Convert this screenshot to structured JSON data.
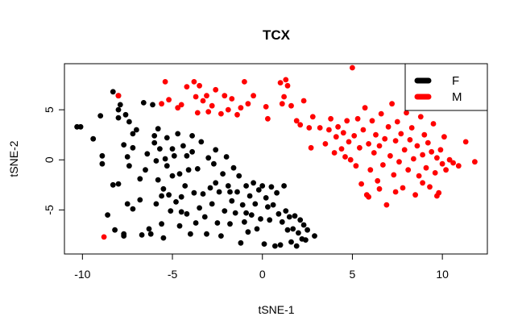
{
  "chart_data": {
    "type": "scatter",
    "title": "TCX",
    "xlabel": "tSNE-1",
    "ylabel": "tSNE-2",
    "xlim": [
      -11,
      12.5
    ],
    "ylim": [
      -9.4,
      9.6
    ],
    "x_ticks": [
      -10,
      -5,
      0,
      5,
      10
    ],
    "y_ticks": [
      -5,
      0,
      5
    ],
    "grid": false,
    "legend_position": "top-right",
    "series": [
      {
        "name": "F",
        "color": "#000000",
        "points": [
          [
            -10.3,
            3.3
          ],
          [
            -10.1,
            3.3
          ],
          [
            -9.4,
            2.1
          ],
          [
            -9.0,
            4.4
          ],
          [
            -8.9,
            0.4
          ],
          [
            -8.9,
            -0.4
          ],
          [
            -8.6,
            -5.5
          ],
          [
            -8.3,
            6.8
          ],
          [
            -8.3,
            -2.5
          ],
          [
            -8.2,
            -7.0
          ],
          [
            -8.0,
            6.4
          ],
          [
            -8.0,
            5.0
          ],
          [
            -8.0,
            4.2
          ],
          [
            -8.0,
            -2.4
          ],
          [
            -7.9,
            5.5
          ],
          [
            -7.7,
            1.5
          ],
          [
            -7.7,
            -7.4
          ],
          [
            -7.7,
            -7.6
          ],
          [
            -7.6,
            4.5
          ],
          [
            -7.5,
            0.3
          ],
          [
            -7.5,
            -4.4
          ],
          [
            -7.4,
            3.8
          ],
          [
            -7.4,
            -0.6
          ],
          [
            -7.2,
            2.6
          ],
          [
            -7.2,
            1.2
          ],
          [
            -7.2,
            -4.9
          ],
          [
            -7.0,
            3.0
          ],
          [
            -6.8,
            -1.9
          ],
          [
            -6.7,
            -7.5
          ],
          [
            -6.6,
            5.7
          ],
          [
            -6.5,
            -1.0
          ],
          [
            -6.4,
            0.6
          ],
          [
            -6.3,
            -6.9
          ],
          [
            -6.2,
            -7.4
          ],
          [
            -6.1,
            5.5
          ],
          [
            -6.0,
            2.4
          ],
          [
            -6.0,
            1.7
          ],
          [
            -5.9,
            -0.1
          ],
          [
            -5.9,
            -4.4
          ],
          [
            -5.8,
            3.1
          ],
          [
            -5.8,
            -2.0
          ],
          [
            -5.7,
            1.1
          ],
          [
            -5.6,
            -6.4
          ],
          [
            -5.5,
            -2.9
          ],
          [
            -5.5,
            -7.8
          ],
          [
            -5.4,
            0.1
          ],
          [
            -5.3,
            2.2
          ],
          [
            -5.3,
            -0.6
          ],
          [
            -5.2,
            -3.5
          ],
          [
            -5.1,
            -5.1
          ],
          [
            -5.0,
            1.1
          ],
          [
            -5.0,
            -1.6
          ],
          [
            -4.9,
            0.4
          ],
          [
            -4.8,
            -4.2
          ],
          [
            -4.7,
            2.6
          ],
          [
            -4.6,
            -1.4
          ],
          [
            -4.5,
            -3.7
          ],
          [
            -4.5,
            -5.2
          ],
          [
            -4.4,
            1.4
          ],
          [
            -4.3,
            -2.6
          ],
          [
            -4.2,
            0.4
          ],
          [
            -4.2,
            -5.4
          ],
          [
            -4.1,
            -1.0
          ],
          [
            -4.0,
            -7.4
          ],
          [
            -3.9,
            0.8
          ],
          [
            -3.8,
            -3.3
          ],
          [
            -3.7,
            -6.3
          ],
          [
            -3.6,
            -0.9
          ],
          [
            -3.5,
            -4.8
          ],
          [
            -3.4,
            1.8
          ],
          [
            -3.3,
            -3.4
          ],
          [
            -3.2,
            -5.7
          ],
          [
            -3.1,
            -7.4
          ],
          [
            -3.0,
            0.2
          ],
          [
            -2.9,
            -2.8
          ],
          [
            -2.8,
            -4.4
          ],
          [
            -2.7,
            -0.4
          ],
          [
            -2.6,
            1.0
          ],
          [
            -2.5,
            -6.3
          ],
          [
            -2.4,
            -3.2
          ],
          [
            -2.3,
            -7.6
          ],
          [
            -2.2,
            -1.4
          ],
          [
            -2.1,
            -5.1
          ],
          [
            -2.0,
            0.3
          ],
          [
            -1.9,
            -2.6
          ],
          [
            -1.8,
            -6.4
          ],
          [
            -1.7,
            -4.1
          ],
          [
            -1.6,
            -0.8
          ],
          [
            -1.5,
            -5.3
          ],
          [
            -1.4,
            -3.2
          ],
          [
            -1.3,
            -1.6
          ],
          [
            -1.2,
            -8.3
          ],
          [
            -1.1,
            -4.5
          ],
          [
            -1.0,
            -6.2
          ],
          [
            -0.9,
            -2.6
          ],
          [
            -0.8,
            -7.2
          ],
          [
            -0.7,
            -3.6
          ],
          [
            -0.6,
            -5.5
          ],
          [
            -0.5,
            -2.3
          ],
          [
            -0.4,
            -4.4
          ],
          [
            -0.3,
            -6.9
          ],
          [
            -0.2,
            -3.0
          ],
          [
            -0.1,
            -5.9
          ],
          [
            0.0,
            -2.6
          ],
          [
            0.1,
            -8.4
          ],
          [
            0.2,
            -3.8
          ],
          [
            0.3,
            -4.7
          ],
          [
            0.4,
            -6.0
          ],
          [
            0.5,
            -2.7
          ],
          [
            0.6,
            -4.5
          ],
          [
            0.7,
            -8.6
          ],
          [
            0.8,
            -3.3
          ],
          [
            0.9,
            -5.4
          ],
          [
            1.0,
            -8.5
          ],
          [
            1.1,
            -6.2
          ],
          [
            1.2,
            -2.6
          ],
          [
            1.3,
            -5.1
          ],
          [
            1.4,
            -7.0
          ],
          [
            1.5,
            -5.7
          ],
          [
            1.6,
            -8.2
          ],
          [
            1.7,
            -6.9
          ],
          [
            1.8,
            -5.6
          ],
          [
            1.9,
            -8.6
          ],
          [
            2.0,
            -7.3
          ],
          [
            2.1,
            -6.0
          ],
          [
            2.2,
            -7.9
          ],
          [
            2.3,
            -6.5
          ],
          [
            2.4,
            -8.0
          ],
          [
            2.5,
            -7.0
          ],
          [
            2.9,
            -7.6
          ],
          [
            -6.8,
            -4.0
          ],
          [
            -5.6,
            -3.6
          ],
          [
            -4.6,
            -6.6
          ],
          [
            -3.9,
            2.4
          ],
          [
            -2.6,
            -2.3
          ],
          [
            -1.8,
            -3.2
          ],
          [
            -0.9,
            -5.3
          ]
        ]
      },
      {
        "name": "M",
        "color": "#ff0000",
        "points": [
          [
            -8.8,
            -7.7
          ],
          [
            -8.0,
            6.4
          ],
          [
            -5.6,
            5.6
          ],
          [
            -5.4,
            7.8
          ],
          [
            -5.2,
            6.0
          ],
          [
            -4.7,
            5.2
          ],
          [
            -4.5,
            5.5
          ],
          [
            -4.2,
            7.3
          ],
          [
            -3.8,
            7.8
          ],
          [
            -3.7,
            6.3
          ],
          [
            -3.6,
            4.7
          ],
          [
            -3.5,
            7.4
          ],
          [
            -3.3,
            5.9
          ],
          [
            -3.1,
            6.4
          ],
          [
            -3.0,
            4.8
          ],
          [
            -2.8,
            5.4
          ],
          [
            -2.6,
            7.0
          ],
          [
            -2.3,
            4.6
          ],
          [
            -2.1,
            6.4
          ],
          [
            -1.9,
            5.0
          ],
          [
            -1.7,
            6.1
          ],
          [
            -1.4,
            4.5
          ],
          [
            -1.2,
            5.2
          ],
          [
            -1.0,
            7.8
          ],
          [
            -0.8,
            5.6
          ],
          [
            -0.5,
            6.4
          ],
          [
            0.2,
            5.3
          ],
          [
            0.3,
            4.1
          ],
          [
            1.0,
            7.7
          ],
          [
            1.1,
            5.6
          ],
          [
            1.2,
            6.3
          ],
          [
            1.3,
            8.0
          ],
          [
            1.4,
            7.4
          ],
          [
            1.6,
            5.4
          ],
          [
            1.9,
            3.9
          ],
          [
            2.1,
            3.5
          ],
          [
            2.3,
            5.9
          ],
          [
            2.6,
            3.2
          ],
          [
            2.7,
            1.2
          ],
          [
            2.8,
            4.3
          ],
          [
            3.2,
            3.2
          ],
          [
            3.5,
            1.6
          ],
          [
            3.7,
            3.0
          ],
          [
            3.8,
            4.1
          ],
          [
            4.0,
            0.7
          ],
          [
            4.1,
            2.3
          ],
          [
            4.2,
            3.3
          ],
          [
            4.4,
            1.1
          ],
          [
            4.5,
            2.7
          ],
          [
            4.6,
            0.3
          ],
          [
            4.7,
            3.9
          ],
          [
            4.8,
            1.8
          ],
          [
            4.9,
            0.0
          ],
          [
            5.0,
            9.2
          ],
          [
            5.1,
            2.4
          ],
          [
            5.2,
            -0.6
          ],
          [
            5.3,
            4.1
          ],
          [
            5.4,
            1.2
          ],
          [
            5.5,
            -2.4
          ],
          [
            5.6,
            3.0
          ],
          [
            5.7,
            5.2
          ],
          [
            5.8,
            -3.5
          ],
          [
            5.9,
            1.6
          ],
          [
            6.0,
            -1.0
          ],
          [
            6.1,
            3.9
          ],
          [
            6.2,
            0.7
          ],
          [
            6.3,
            2.5
          ],
          [
            6.4,
            -2.1
          ],
          [
            6.5,
            1.4
          ],
          [
            6.6,
            4.6
          ],
          [
            6.7,
            -0.5
          ],
          [
            6.8,
            2.1
          ],
          [
            6.9,
            -4.5
          ],
          [
            7.0,
            3.3
          ],
          [
            7.1,
            0.4
          ],
          [
            7.2,
            5.6
          ],
          [
            7.3,
            -1.5
          ],
          [
            7.4,
            1.9
          ],
          [
            7.5,
            3.8
          ],
          [
            7.6,
            -0.2
          ],
          [
            7.7,
            2.6
          ],
          [
            7.8,
            -2.8
          ],
          [
            7.9,
            1.0
          ],
          [
            8.0,
            4.7
          ],
          [
            8.1,
            -1.0
          ],
          [
            8.2,
            2.0
          ],
          [
            8.3,
            3.2
          ],
          [
            8.4,
            0.1
          ],
          [
            8.5,
            -3.5
          ],
          [
            8.6,
            1.4
          ],
          [
            8.7,
            -1.6
          ],
          [
            8.8,
            4.3
          ],
          [
            8.9,
            0.5
          ],
          [
            9.0,
            2.5
          ],
          [
            9.1,
            -0.8
          ],
          [
            9.2,
            1.7
          ],
          [
            9.3,
            -2.7
          ],
          [
            9.4,
            0.8
          ],
          [
            9.5,
            3.6
          ],
          [
            9.6,
            -1.3
          ],
          [
            9.7,
            0.2
          ],
          [
            9.8,
            -3.3
          ],
          [
            9.9,
            1.0
          ],
          [
            10.0,
            -0.4
          ],
          [
            10.1,
            2.3
          ],
          [
            10.2,
            -1.0
          ],
          [
            10.4,
            0.0
          ],
          [
            10.6,
            -0.3
          ],
          [
            10.9,
            -0.6
          ],
          [
            11.3,
            1.8
          ],
          [
            11.8,
            -0.2
          ],
          [
            5.9,
            -3.7
          ],
          [
            6.5,
            -2.9
          ],
          [
            7.4,
            -3.2
          ],
          [
            8.9,
            -2.3
          ],
          [
            9.7,
            -3.6
          ]
        ]
      }
    ]
  }
}
